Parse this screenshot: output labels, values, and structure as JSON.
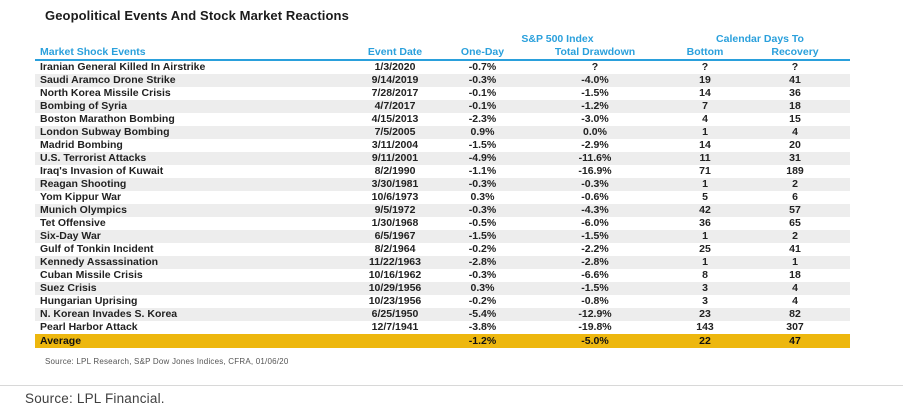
{
  "title": "Geopolitical Events And Stock Market Reactions",
  "footer": {
    "source": "Source: LPL Financial."
  },
  "colors": {
    "header_blue": "#2aa0dc",
    "average_yellow": "#edb70e",
    "stripe_gray": "#ededed",
    "text_dark": "#222222"
  },
  "chart_data": {
    "type": "table",
    "title": "Geopolitical Events And Stock Market Reactions",
    "column_groups": [
      {
        "label": "S&P 500 Index",
        "spans": [
          "One-Day",
          "Total Drawdown"
        ]
      },
      {
        "label": "Calendar Days To",
        "spans": [
          "Bottom",
          "Recovery"
        ]
      }
    ],
    "columns": [
      "Market Shock Events",
      "Event Date",
      "One-Day",
      "Total Drawdown",
      "Bottom",
      "Recovery"
    ],
    "rows": [
      [
        "Iranian General Killed In Airstrike",
        "1/3/2020",
        "-0.7%",
        "?",
        "?",
        "?"
      ],
      [
        "Saudi Aramco Drone Strike",
        "9/14/2019",
        "-0.3%",
        "-4.0%",
        "19",
        "41"
      ],
      [
        "North Korea Missile Crisis",
        "7/28/2017",
        "-0.1%",
        "-1.5%",
        "14",
        "36"
      ],
      [
        "Bombing of Syria",
        "4/7/2017",
        "-0.1%",
        "-1.2%",
        "7",
        "18"
      ],
      [
        "Boston Marathon Bombing",
        "4/15/2013",
        "-2.3%",
        "-3.0%",
        "4",
        "15"
      ],
      [
        "London Subway Bombing",
        "7/5/2005",
        "0.9%",
        "0.0%",
        "1",
        "4"
      ],
      [
        "Madrid Bombing",
        "3/11/2004",
        "-1.5%",
        "-2.9%",
        "14",
        "20"
      ],
      [
        "U.S. Terrorist Attacks",
        "9/11/2001",
        "-4.9%",
        "-11.6%",
        "11",
        "31"
      ],
      [
        "Iraq's Invasion of Kuwait",
        "8/2/1990",
        "-1.1%",
        "-16.9%",
        "71",
        "189"
      ],
      [
        "Reagan Shooting",
        "3/30/1981",
        "-0.3%",
        "-0.3%",
        "1",
        "2"
      ],
      [
        "Yom Kippur War",
        "10/6/1973",
        "0.3%",
        "-0.6%",
        "5",
        "6"
      ],
      [
        "Munich Olympics",
        "9/5/1972",
        "-0.3%",
        "-4.3%",
        "42",
        "57"
      ],
      [
        "Tet Offensive",
        "1/30/1968",
        "-0.5%",
        "-6.0%",
        "36",
        "65"
      ],
      [
        "Six-Day War",
        "6/5/1967",
        "-1.5%",
        "-1.5%",
        "1",
        "2"
      ],
      [
        "Gulf of Tonkin Incident",
        "8/2/1964",
        "-0.2%",
        "-2.2%",
        "25",
        "41"
      ],
      [
        "Kennedy Assassination",
        "11/22/1963",
        "-2.8%",
        "-2.8%",
        "1",
        "1"
      ],
      [
        "Cuban Missile Crisis",
        "10/16/1962",
        "-0.3%",
        "-6.6%",
        "8",
        "18"
      ],
      [
        "Suez Crisis",
        "10/29/1956",
        "0.3%",
        "-1.5%",
        "3",
        "4"
      ],
      [
        "Hungarian Uprising",
        "10/23/1956",
        "-0.2%",
        "-0.8%",
        "3",
        "4"
      ],
      [
        "N. Korean Invades S. Korea",
        "6/25/1950",
        "-5.4%",
        "-12.9%",
        "23",
        "82"
      ],
      [
        "Pearl Harbor Attack",
        "12/7/1941",
        "-3.8%",
        "-19.8%",
        "143",
        "307"
      ]
    ],
    "average_row": [
      "Average",
      "",
      "-1.2%",
      "-5.0%",
      "22",
      "47"
    ],
    "source": "Source: LPL Research, S&P Dow Jones Indices, CFRA, 01/06/20"
  }
}
